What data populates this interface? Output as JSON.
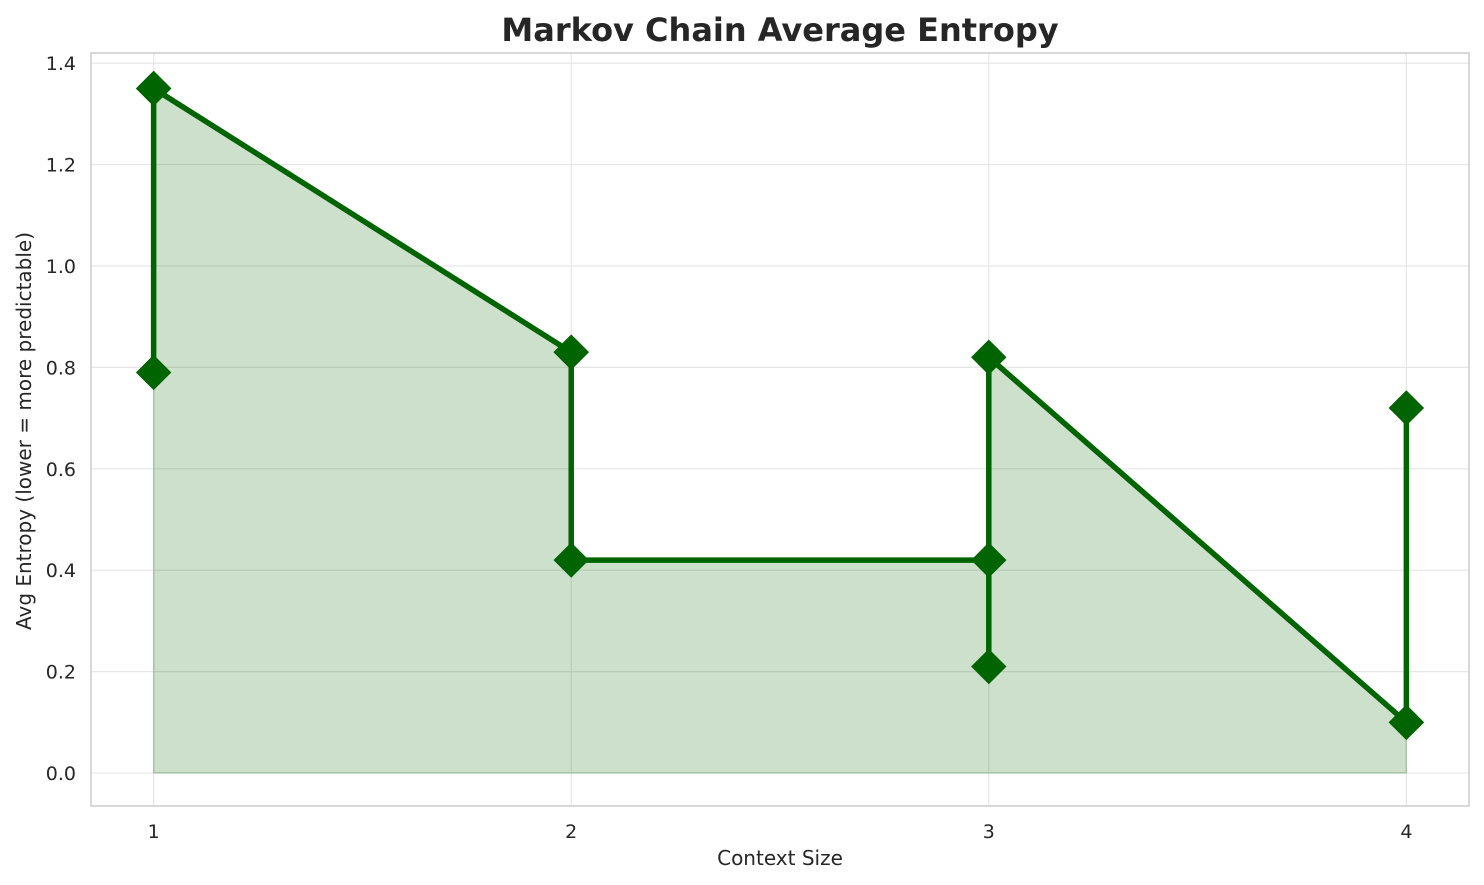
{
  "chart_data": {
    "type": "line",
    "title": "Markov Chain Average Entropy",
    "xlabel": "Context Size",
    "ylabel": "Avg Entropy (lower = more predictable)",
    "x_ticks": [
      "1",
      "2",
      "3",
      "4"
    ],
    "y_ticks": [
      "0.0",
      "0.2",
      "0.4",
      "0.6",
      "0.8",
      "1.0",
      "1.2",
      "1.4"
    ],
    "xlim": [
      0.85,
      4.15
    ],
    "ylim": [
      -0.065,
      1.42
    ],
    "grid": true,
    "fill_under_line": true,
    "marker": "diamond",
    "series": [
      {
        "x": [
          1,
          1,
          1,
          2,
          2,
          2,
          3,
          3,
          3,
          4,
          4,
          4
        ],
        "y": [
          0.79,
          1.35,
          1.35,
          0.83,
          0.83,
          0.42,
          0.42,
          0.21,
          0.82,
          0.1,
          0.1,
          0.72
        ]
      }
    ],
    "colors": {
      "line": "#006400",
      "fill": "#006400",
      "grid": "#e6e6e6",
      "axes_edge": "#cccccc",
      "text": "#262626"
    }
  }
}
